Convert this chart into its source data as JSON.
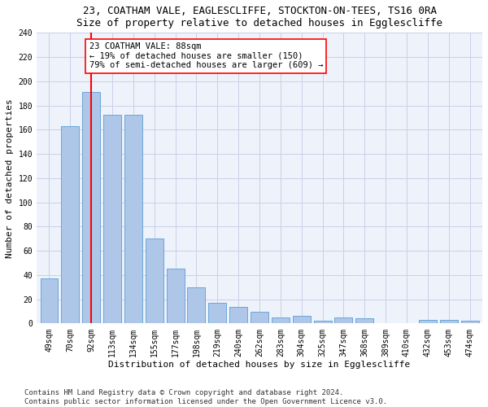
{
  "title": "23, COATHAM VALE, EAGLESCLIFFE, STOCKTON-ON-TEES, TS16 0RA",
  "subtitle": "Size of property relative to detached houses in Egglescliffe",
  "xlabel": "Distribution of detached houses by size in Egglescliffe",
  "ylabel": "Number of detached properties",
  "categories": [
    "49sqm",
    "70sqm",
    "92sqm",
    "113sqm",
    "134sqm",
    "155sqm",
    "177sqm",
    "198sqm",
    "219sqm",
    "240sqm",
    "262sqm",
    "283sqm",
    "304sqm",
    "325sqm",
    "347sqm",
    "368sqm",
    "389sqm",
    "410sqm",
    "432sqm",
    "453sqm",
    "474sqm"
  ],
  "values": [
    37,
    163,
    191,
    172,
    172,
    70,
    45,
    30,
    17,
    14,
    10,
    5,
    6,
    2,
    5,
    4,
    0,
    0,
    3,
    3,
    2
  ],
  "bar_color": "#aec6e8",
  "bar_edge_color": "#5a9fd4",
  "vline_x": 2,
  "vline_color": "red",
  "annotation_text": "23 COATHAM VALE: 88sqm\n← 19% of detached houses are smaller (150)\n79% of semi-detached houses are larger (609) →",
  "annotation_box_color": "white",
  "annotation_box_edge_color": "red",
  "ylim": [
    0,
    240
  ],
  "yticks": [
    0,
    20,
    40,
    60,
    80,
    100,
    120,
    140,
    160,
    180,
    200,
    220,
    240
  ],
  "footer_line1": "Contains HM Land Registry data © Crown copyright and database right 2024.",
  "footer_line2": "Contains public sector information licensed under the Open Government Licence v3.0.",
  "bg_color": "#eef2fb",
  "grid_color": "#c8d0e8",
  "title_fontsize": 9,
  "axis_label_fontsize": 8,
  "tick_fontsize": 7,
  "footer_fontsize": 6.5,
  "annotation_fontsize": 7.5
}
